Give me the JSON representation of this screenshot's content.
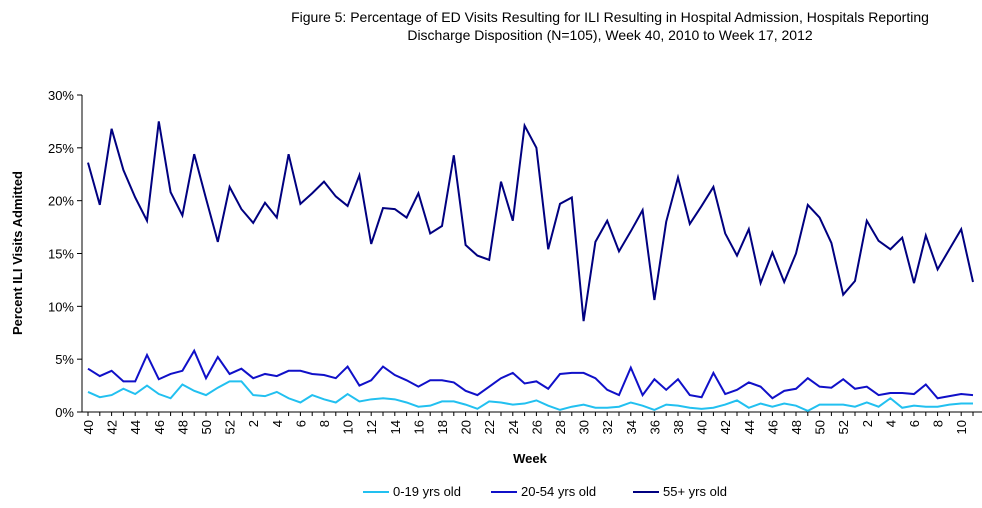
{
  "chart_data": {
    "type": "line",
    "title": [
      "Figure 5: Percentage of ED Visits Resulting for ILI Resulting in Hospital Admission, Hospitals Reporting",
      "Discharge Disposition (N=105), Week 40, 2010 to Week 17, 2012"
    ],
    "x_label": "Week",
    "y_label": "Percent ILI Visits Admitted",
    "categories": [
      40,
      null,
      42,
      null,
      44,
      null,
      46,
      null,
      48,
      null,
      50,
      null,
      52,
      null,
      2,
      null,
      4,
      null,
      6,
      null,
      8,
      null,
      10,
      null,
      12,
      null,
      14,
      null,
      16,
      null,
      18,
      null,
      20,
      null,
      22,
      null,
      24,
      null,
      26,
      null,
      28,
      null,
      30,
      null,
      32,
      null,
      34,
      null,
      36,
      null,
      38,
      null,
      40,
      null,
      42,
      null,
      44,
      null,
      46,
      null,
      48,
      null,
      50,
      null,
      52,
      null,
      2,
      null,
      4,
      null,
      6,
      null,
      8,
      null,
      10,
      null
    ],
    "series": [
      {
        "name": "0-19 yrs old",
        "color": "#22c0f0",
        "values": [
          1.9,
          1.4,
          1.6,
          2.2,
          1.7,
          2.5,
          1.7,
          1.3,
          2.6,
          2.0,
          1.6,
          2.3,
          2.9,
          2.9,
          1.6,
          1.5,
          1.9,
          1.3,
          0.9,
          1.6,
          1.2,
          0.9,
          1.7,
          1.0,
          1.2,
          1.3,
          1.2,
          0.9,
          0.5,
          0.6,
          1.0,
          1.0,
          0.7,
          0.3,
          1.0,
          0.9,
          0.7,
          0.8,
          1.1,
          0.6,
          0.2,
          0.5,
          0.7,
          0.4,
          0.4,
          0.5,
          0.9,
          0.6,
          0.2,
          0.7,
          0.6,
          0.4,
          0.3,
          0.4,
          0.7,
          1.1,
          0.4,
          0.8,
          0.5,
          0.8,
          0.6,
          0.1,
          0.7,
          0.7,
          0.7,
          0.5,
          0.9,
          0.5,
          1.3,
          0.4,
          0.6,
          0.5,
          0.5,
          0.7,
          0.8,
          0.8
        ]
      },
      {
        "name": "20-54 yrs old",
        "color": "#1010c8",
        "values": [
          4.1,
          3.4,
          3.9,
          2.9,
          2.9,
          5.4,
          3.1,
          3.6,
          3.9,
          5.8,
          3.2,
          5.2,
          3.6,
          4.1,
          3.2,
          3.6,
          3.4,
          3.9,
          3.9,
          3.6,
          3.5,
          3.2,
          4.3,
          2.5,
          3.0,
          4.3,
          3.5,
          3.0,
          2.4,
          3.0,
          3.0,
          2.8,
          2.0,
          1.6,
          2.4,
          3.2,
          3.7,
          2.7,
          2.9,
          2.2,
          3.6,
          3.7,
          3.7,
          3.2,
          2.1,
          1.6,
          4.2,
          1.6,
          3.1,
          2.1,
          3.1,
          1.6,
          1.4,
          3.7,
          1.7,
          2.1,
          2.8,
          2.4,
          1.3,
          2.0,
          2.2,
          3.2,
          2.4,
          2.3,
          3.1,
          2.2,
          2.4,
          1.6,
          1.8,
          1.8,
          1.7,
          2.6,
          1.3,
          1.5,
          1.7,
          1.6
        ]
      },
      {
        "name": "55+ yrs old",
        "color": "#000080",
        "values": [
          23.6,
          19.6,
          26.8,
          22.9,
          20.3,
          18.1,
          27.5,
          20.8,
          18.6,
          24.4,
          20.2,
          16.1,
          21.3,
          19.2,
          17.9,
          19.8,
          18.4,
          24.4,
          19.7,
          20.7,
          21.8,
          20.4,
          19.5,
          22.4,
          15.9,
          19.3,
          19.2,
          18.4,
          20.7,
          16.9,
          17.6,
          24.3,
          15.8,
          14.8,
          14.4,
          21.8,
          18.1,
          27.1,
          25.0,
          15.4,
          19.7,
          20.3,
          8.6,
          16.1,
          18.1,
          15.2,
          17.1,
          19.1,
          10.6,
          18.0,
          22.2,
          17.8,
          19.5,
          21.3,
          16.9,
          14.8,
          17.3,
          12.2,
          15.1,
          12.3,
          15.0,
          19.6,
          18.4,
          16.0,
          11.1,
          12.4,
          18.1,
          16.2,
          15.4,
          16.5,
          12.2,
          16.7,
          13.5,
          15.4,
          17.3,
          12.3
        ]
      }
    ],
    "ylim": [
      0,
      30
    ],
    "yticks": [
      {
        "value": 0,
        "label": "0%"
      },
      {
        "value": 5,
        "label": "5%"
      },
      {
        "value": 10,
        "label": "10%"
      },
      {
        "value": 15,
        "label": "15%"
      },
      {
        "value": 20,
        "label": "20%"
      },
      {
        "value": 25,
        "label": "25%"
      },
      {
        "value": 30,
        "label": "30%"
      }
    ],
    "legend": "bottom",
    "grid": false
  }
}
